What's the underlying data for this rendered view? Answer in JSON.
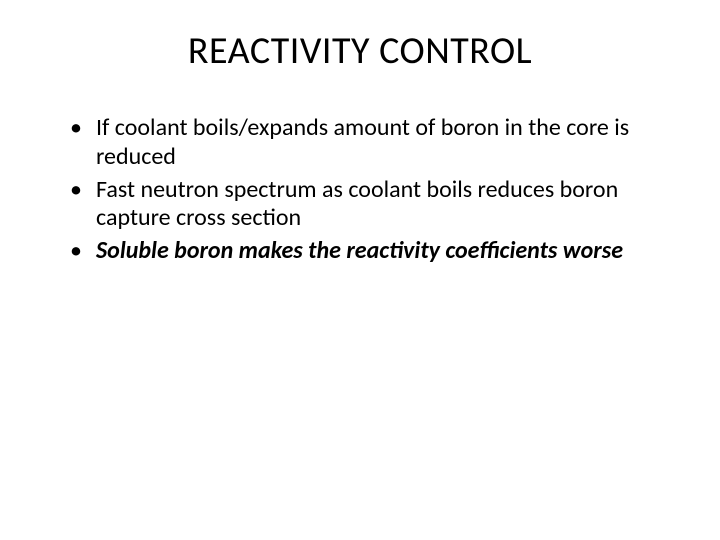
{
  "slide": {
    "title": "REACTIVITY CONTROL",
    "bullets": [
      {
        "text": "If coolant boils/expands amount of boron in the core is reduced",
        "emphasis": false
      },
      {
        "text": "Fast neutron spectrum as coolant boils reduces boron capture cross section",
        "emphasis": false
      },
      {
        "text": "Soluble boron makes the reactivity coefficients worse",
        "emphasis": true
      }
    ]
  },
  "styling": {
    "background_color": "#ffffff",
    "text_color": "#000000",
    "title_fontsize": 38,
    "body_fontsize": 24,
    "font_family": "Calibri"
  }
}
